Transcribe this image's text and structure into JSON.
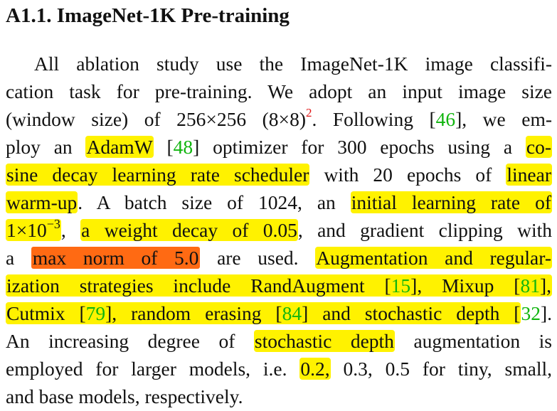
{
  "heading": "A1.1. ImageNet-1K Pre-training",
  "footnote_mark": "2",
  "text": {
    "l1": "All ablation study use the ImageNet-1K image classifi-",
    "l2": "cation task for pre-training. We adopt an input image size",
    "l3a": "(window size) of 256×256 (8×8)",
    "l3b": ". Following [",
    "l3c": "], we em-",
    "l4a": "ploy an ",
    "l4b": " [",
    "l4c": "] optimizer for 300 epochs using a ",
    "l5a": " with 20 epochs of ",
    "l6a": ". A batch size of 1024, an ",
    "l7a": "1×10",
    "l7exp": "−3",
    "l7b": ", ",
    "l7c": ", and gradient clipping with",
    "l8a": "a ",
    "l8b": " are used. ",
    "l9a": "ization strategies include RandAugment [",
    "l9b": "], Mixup [",
    "l9c": "],",
    "l10a": "Cutmix [",
    "l10b": "], random erasing [",
    "l10c": "] and stochastic depth [",
    "l10d": "].",
    "l11a": "An increasing degree of ",
    "l11b": " augmentation is",
    "l12a": "employed for larger models, i.e. ",
    "l12b": " 0.3, 0.5 for tiny, small,",
    "l13": "and base models, respectively."
  },
  "highlights": {
    "adamw": "AdamW",
    "co": "co-",
    "cosine": "sine decay learning rate scheduler",
    "linear": "linear",
    "warmup": "warm-up",
    "initial_lr": "initial learning rate of",
    "weight_decay": "a weight decay of 0.05",
    "max_norm": "max norm of 5.0",
    "aug": "Augmentation and regular-",
    "stoch": "stochastic depth",
    "val02": "0.2,"
  },
  "citations": {
    "c46": "46",
    "c48": "48",
    "c15": "15",
    "c81": "81",
    "c79": "79",
    "c84": "84",
    "c32": "32"
  },
  "colors": {
    "highlight_yellow": "#fff200",
    "highlight_orange": "#ff6a13",
    "citation_green": "#11b50f",
    "footnote_red": "#e01414"
  }
}
